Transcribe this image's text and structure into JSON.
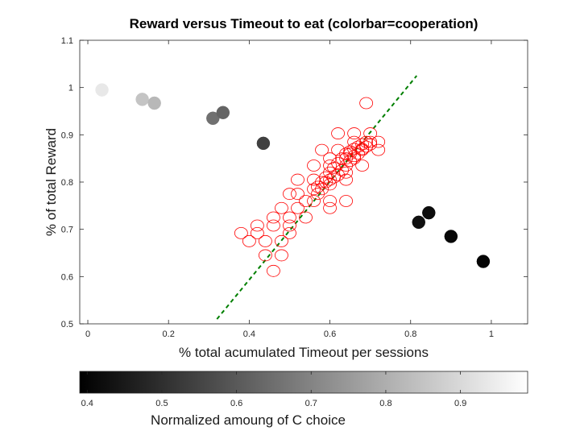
{
  "chart_data": {
    "type": "scatter",
    "title": "Reward versus Timeout to eat (colorbar=cooperation)",
    "xlabel": "% total acumulated Timeout per sessions",
    "ylabel": "% of total Reward",
    "xlim": [
      -0.02,
      1.09
    ],
    "ylim": [
      0.5,
      1.1
    ],
    "xticks": [
      "0",
      "0.2",
      "0.4",
      "0.6",
      "0.8",
      "1"
    ],
    "xtick_values": [
      0,
      0.2,
      0.4,
      0.6,
      0.8,
      1.0
    ],
    "yticks": [
      "0.5",
      "0.6",
      "0.7",
      "0.8",
      "0.9",
      "1",
      "1.1"
    ],
    "ytick_values": [
      0.5,
      0.6,
      0.7,
      0.8,
      0.9,
      1.0,
      1.1
    ],
    "grid": false,
    "series": [
      {
        "marker": "filled-circle-gray",
        "points": [
          {
            "x": 0.035,
            "y": 0.995,
            "c": 0.97
          },
          {
            "x": 0.135,
            "y": 0.975,
            "c": 0.88
          },
          {
            "x": 0.165,
            "y": 0.967,
            "c": 0.85
          },
          {
            "x": 0.31,
            "y": 0.935,
            "c": 0.67
          },
          {
            "x": 0.335,
            "y": 0.947,
            "c": 0.64
          },
          {
            "x": 0.435,
            "y": 0.882,
            "c": 0.55
          },
          {
            "x": 0.82,
            "y": 0.715,
            "c": 0.43
          },
          {
            "x": 0.845,
            "y": 0.735,
            "c": 0.42
          },
          {
            "x": 0.9,
            "y": 0.685,
            "c": 0.41
          },
          {
            "x": 0.98,
            "y": 0.632,
            "c": 0.4
          }
        ]
      },
      {
        "marker": "open-circle-red",
        "color": "#ff0000",
        "points": [
          [
            0.69,
            0.967
          ],
          [
            0.62,
            0.903
          ],
          [
            0.66,
            0.903
          ],
          [
            0.7,
            0.903
          ],
          [
            0.58,
            0.868
          ],
          [
            0.62,
            0.868
          ],
          [
            0.66,
            0.885
          ],
          [
            0.7,
            0.885
          ],
          [
            0.72,
            0.885
          ],
          [
            0.6,
            0.85
          ],
          [
            0.64,
            0.85
          ],
          [
            0.68,
            0.868
          ],
          [
            0.72,
            0.868
          ],
          [
            0.56,
            0.835
          ],
          [
            0.6,
            0.835
          ],
          [
            0.64,
            0.82
          ],
          [
            0.68,
            0.835
          ],
          [
            0.56,
            0.805
          ],
          [
            0.6,
            0.805
          ],
          [
            0.64,
            0.805
          ],
          [
            0.52,
            0.805
          ],
          [
            0.52,
            0.775
          ],
          [
            0.54,
            0.76
          ],
          [
            0.56,
            0.76
          ],
          [
            0.6,
            0.76
          ],
          [
            0.64,
            0.76
          ],
          [
            0.5,
            0.775
          ],
          [
            0.48,
            0.745
          ],
          [
            0.52,
            0.745
          ],
          [
            0.6,
            0.745
          ],
          [
            0.46,
            0.725
          ],
          [
            0.5,
            0.725
          ],
          [
            0.54,
            0.725
          ],
          [
            0.42,
            0.708
          ],
          [
            0.46,
            0.708
          ],
          [
            0.5,
            0.708
          ],
          [
            0.38,
            0.692
          ],
          [
            0.42,
            0.692
          ],
          [
            0.5,
            0.692
          ],
          [
            0.4,
            0.675
          ],
          [
            0.44,
            0.675
          ],
          [
            0.48,
            0.675
          ],
          [
            0.44,
            0.645
          ],
          [
            0.48,
            0.645
          ],
          [
            0.46,
            0.612
          ],
          [
            0.58,
            0.8
          ],
          [
            0.59,
            0.81
          ],
          [
            0.6,
            0.82
          ],
          [
            0.61,
            0.83
          ],
          [
            0.62,
            0.84
          ],
          [
            0.63,
            0.85
          ],
          [
            0.64,
            0.86
          ],
          [
            0.65,
            0.865
          ],
          [
            0.66,
            0.87
          ],
          [
            0.67,
            0.875
          ],
          [
            0.68,
            0.88
          ],
          [
            0.69,
            0.885
          ],
          [
            0.57,
            0.79
          ],
          [
            0.58,
            0.785
          ],
          [
            0.6,
            0.795
          ],
          [
            0.62,
            0.815
          ],
          [
            0.63,
            0.825
          ],
          [
            0.65,
            0.845
          ],
          [
            0.66,
            0.855
          ],
          [
            0.67,
            0.86
          ],
          [
            0.56,
            0.785
          ],
          [
            0.57,
            0.775
          ],
          [
            0.59,
            0.8
          ],
          [
            0.61,
            0.81
          ],
          [
            0.64,
            0.835
          ],
          [
            0.66,
            0.85
          ],
          [
            0.68,
            0.87
          ],
          [
            0.69,
            0.875
          ],
          [
            0.7,
            0.88
          ],
          [
            0.65,
            0.86
          ]
        ]
      },
      {
        "marker": "dashed-line-green",
        "color": "#007f00",
        "line": [
          [
            0.32,
            0.51
          ],
          [
            0.815,
            1.025
          ]
        ]
      }
    ],
    "colorbar": {
      "label": "Normalized amoung of C choice",
      "range": [
        0.39,
        0.99
      ],
      "ticks": [
        "0.4",
        "0.5",
        "0.6",
        "0.7",
        "0.8",
        "0.9"
      ],
      "tick_values": [
        0.4,
        0.5,
        0.6,
        0.7,
        0.8,
        0.9
      ],
      "colormap": "gray"
    }
  }
}
